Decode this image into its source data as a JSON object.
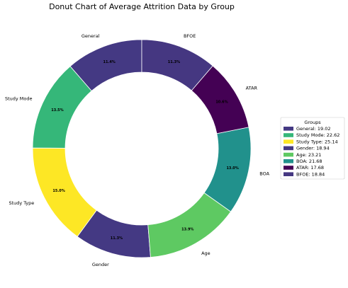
{
  "chart_data": {
    "type": "pie",
    "variant": "donut",
    "title": "Donut Chart of Average Attrition Data by Group",
    "categories": [
      "General",
      "Study Mode",
      "Study Type",
      "Gender",
      "Age",
      "BOA",
      "ATAR",
      "BFOE"
    ],
    "values": [
      19.02,
      22.62,
      25.14,
      18.94,
      23.21,
      21.68,
      17.68,
      18.84
    ],
    "percent_labels": [
      "11.4%",
      "13.5%",
      "15.0%",
      "11.3%",
      "13.9%",
      "13.0%",
      "10.6%",
      "11.3%"
    ],
    "colors": [
      "#443983",
      "#35b779",
      "#fde725",
      "#443983",
      "#5ec962",
      "#21918c",
      "#440154",
      "#453781"
    ],
    "start_angle_deg": 90,
    "direction": "counterclockwise",
    "legend": {
      "title": "Groups",
      "placement": "center-right",
      "entries": [
        "General: 19.02",
        "Study Mode: 22.62",
        "Study Type: 25.14",
        "Gender: 18.94",
        "Age: 23.21",
        "BOA: 21.68",
        "ATAR: 17.68",
        "BFOE: 18.84"
      ]
    }
  }
}
